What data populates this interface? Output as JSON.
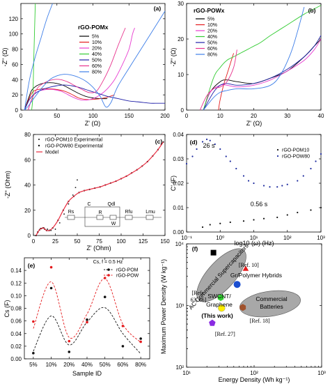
{
  "colors": {
    "p5": "#000000",
    "p10": "#e41a1c",
    "p20": "#e83cd0",
    "p40": "#33cc33",
    "p50": "#1f1fa8",
    "p60": "#e8338d",
    "p80": "#3d7ee8",
    "pom": "#111111",
    "pow": "#e41a1c",
    "model": "#e8283c",
    "blue": "#1c2a9e"
  },
  "chart_data": [
    {
      "panel": "(a)",
      "type": "line",
      "xlabel": "Z' (Ω)",
      "ylabel": "-Z\" (Ω)",
      "xlim": [
        0,
        200
      ],
      "ylim": [
        0,
        140
      ],
      "xticks": [
        "0",
        "50",
        "100",
        "150",
        "200"
      ],
      "yticks": [
        "0",
        "20",
        "40",
        "60",
        "80",
        "100",
        "120"
      ],
      "legend_title": "rGO-POMx",
      "series": [
        {
          "name": "5%",
          "color_key": "p5",
          "x": [
            5,
            10,
            15,
            22,
            30,
            40,
            50,
            60,
            70,
            80,
            90,
            100,
            110,
            120
          ],
          "y": [
            0,
            14,
            26,
            32,
            35,
            36,
            35,
            32,
            27,
            22,
            18,
            16,
            15,
            15
          ]
        },
        {
          "name": "10%",
          "color_key": "p10",
          "x": [
            5,
            10,
            15,
            20,
            30,
            40,
            50,
            60,
            70,
            80,
            90,
            100,
            110,
            120,
            130
          ],
          "y": [
            0,
            12,
            22,
            26,
            28,
            28,
            27,
            25,
            21,
            16,
            14,
            14,
            15,
            17,
            20
          ]
        },
        {
          "name": "20%",
          "color_key": "p20",
          "x": [
            10,
            14,
            18,
            25,
            35,
            45,
            55,
            62,
            70,
            80,
            90,
            100,
            110,
            120,
            130,
            140,
            150,
            155,
            158
          ],
          "y": [
            0,
            12,
            20,
            25,
            27,
            27,
            25,
            22,
            18,
            14,
            13,
            15,
            20,
            28,
            40,
            58,
            80,
            100,
            108
          ]
        },
        {
          "name": "40%",
          "color_key": "p40",
          "x": [
            15,
            16,
            17,
            18,
            20
          ],
          "y": [
            0,
            10,
            28,
            70,
            140
          ]
        },
        {
          "name": "50%",
          "color_key": "p50",
          "x": [
            5,
            12,
            20,
            30,
            40,
            50,
            60,
            70,
            80,
            90,
            100,
            110,
            120,
            130,
            140,
            150,
            160,
            170,
            180,
            190,
            200
          ],
          "y": [
            0,
            14,
            22,
            27,
            30,
            32,
            33,
            32,
            30,
            27,
            24,
            21,
            18,
            16,
            14,
            12,
            11,
            10,
            9,
            9,
            9
          ]
        },
        {
          "name": "60%",
          "color_key": "p60",
          "x": [
            10,
            15,
            20,
            25,
            35,
            45,
            55,
            65,
            75,
            85,
            95,
            105,
            115,
            125,
            135,
            145
          ],
          "y": [
            0,
            14,
            24,
            31,
            37,
            40,
            40,
            37,
            32,
            27,
            23,
            25,
            40,
            60,
            85,
            108
          ]
        },
        {
          "name": "80%",
          "color_key": "p80",
          "x": [
            5,
            10,
            20,
            30,
            40,
            50,
            60,
            70,
            80,
            90,
            100,
            110,
            118,
            125,
            130,
            135,
            140,
            150,
            160,
            180,
            200
          ],
          "y": [
            0,
            5,
            18,
            30,
            40,
            45,
            47,
            46,
            43,
            38,
            30,
            18,
            4,
            10,
            22,
            32,
            40,
            55,
            70,
            100,
            130
          ]
        },
        {
          "name": "",
          "color_key": "p80",
          "x": [
            5,
            12,
            20,
            28,
            36,
            44
          ],
          "y": [
            0,
            40,
            70,
            95,
            120,
            140
          ]
        }
      ]
    },
    {
      "panel": "(b)",
      "type": "line",
      "xlabel": "Z' (Ω)",
      "ylabel": "-Z\" (Ω)",
      "xlim": [
        0,
        40
      ],
      "ylim": [
        0,
        30
      ],
      "xticks": [
        "0",
        "10",
        "20",
        "30",
        "40"
      ],
      "yticks": [
        "0",
        "10",
        "20",
        "30"
      ],
      "legend_title": "rGO-POWx",
      "series": [
        {
          "name": "5%",
          "color_key": "p5",
          "x": [
            5,
            7,
            10,
            12,
            15,
            20,
            25,
            30,
            35,
            38,
            40
          ],
          "y": [
            0,
            5,
            8,
            8.5,
            8,
            7.5,
            9,
            11,
            15,
            18,
            20
          ]
        },
        {
          "name": "10%",
          "color_key": "p10",
          "x": [
            9.5,
            10,
            11,
            12,
            13,
            14
          ],
          "y": [
            0,
            3,
            7,
            10,
            13,
            16
          ]
        },
        {
          "name": "20%",
          "color_key": "p20",
          "x": [
            5,
            7,
            10,
            12,
            15,
            20,
            25,
            30,
            35,
            38,
            40
          ],
          "y": [
            0,
            5,
            7,
            7,
            6.5,
            7,
            8.5,
            11,
            14,
            17,
            20
          ]
        },
        {
          "name": "40%",
          "color_key": "p40",
          "x": [
            5,
            8,
            10,
            12,
            14,
            16,
            18,
            20,
            22,
            25,
            30,
            35,
            38,
            40
          ],
          "y": [
            0,
            9,
            12,
            14,
            15,
            16,
            17,
            18,
            19,
            21,
            24,
            27,
            28.5,
            29.5
          ]
        },
        {
          "name": "50%",
          "color_key": "p50",
          "x": [
            5,
            8,
            10,
            12,
            15,
            20,
            25,
            30,
            35,
            38,
            40
          ],
          "y": [
            0,
            5,
            7,
            7.5,
            7,
            7.5,
            9,
            11.5,
            15,
            18,
            21
          ]
        },
        {
          "name": "60%",
          "color_key": "p60",
          "x": [
            4,
            6,
            8,
            10,
            12,
            14,
            15
          ],
          "y": [
            0,
            4,
            6,
            6.5,
            8,
            12,
            17
          ]
        },
        {
          "name": "80%",
          "color_key": "p80",
          "x": [
            5,
            8,
            10,
            12,
            15,
            20,
            25,
            28,
            31,
            33,
            35
          ],
          "y": [
            0,
            3.5,
            5,
            5.5,
            6,
            6,
            7,
            10,
            16,
            22,
            29
          ]
        }
      ]
    },
    {
      "panel": "(c)",
      "type": "scatter",
      "xlabel": "Z' (Ohm)",
      "ylabel": "-Z\" (Ohm)",
      "xlim": [
        0,
        150
      ],
      "ylim": [
        0,
        80
      ],
      "xticks": [
        "0",
        "25",
        "50",
        "75",
        "100",
        "125",
        "150"
      ],
      "yticks": [
        "0",
        "20",
        "40",
        "60",
        "80"
      ],
      "series": [
        {
          "name": "rGO-POM10 Experimental",
          "color_key": "pom",
          "x": [
            3,
            5,
            8,
            12,
            16,
            20,
            25,
            30,
            35,
            40,
            45,
            48,
            50
          ],
          "y": [
            0,
            3,
            5.5,
            6,
            5,
            4,
            5,
            10,
            17,
            25,
            32,
            38,
            44
          ]
        },
        {
          "name": "rGO-POW80 Experimental",
          "color_key": "pow",
          "x": [
            3,
            5,
            7,
            9,
            11,
            13,
            15,
            18,
            22,
            28,
            34,
            40,
            46,
            52,
            58,
            64,
            70,
            76,
            82,
            88,
            94,
            100,
            106,
            112,
            118,
            124,
            130,
            136,
            142,
            148
          ],
          "y": [
            0,
            2.5,
            4.5,
            5.5,
            6,
            5,
            4,
            4,
            6,
            12,
            20,
            27,
            31,
            34,
            35.5,
            36.5,
            37.5,
            38.5,
            40,
            41.5,
            43,
            45,
            47,
            49.5,
            52,
            55,
            58.5,
            63,
            68,
            74
          ]
        },
        {
          "name": "Model",
          "color_key": "model",
          "x": [
            3,
            5,
            7,
            9,
            11,
            13,
            15,
            18,
            22,
            28,
            34,
            40,
            46,
            52,
            58,
            64,
            70,
            76,
            82,
            88,
            94,
            100,
            106,
            112,
            118,
            124,
            130,
            136,
            142,
            148
          ],
          "y": [
            0,
            2.5,
            4.5,
            5.5,
            6,
            5,
            4,
            4,
            6,
            12,
            20,
            27,
            31,
            34,
            35.5,
            36.5,
            37.5,
            38.5,
            40,
            41.5,
            43,
            45,
            47,
            49.5,
            52,
            55,
            58.5,
            63,
            68,
            74
          ]
        }
      ],
      "circuit_labels": [
        "Rs",
        "C",
        "R",
        "Qdl",
        "W",
        "Rfu",
        "Lmu"
      ]
    },
    {
      "panel": "(d)",
      "type": "scatter",
      "xscale": "log",
      "xlabel": "log10 (ω) (Hz)",
      "ylabel": "C' (F)",
      "xlim": [
        0.1,
        1000
      ],
      "ylim": [
        0,
        0.04
      ],
      "xticks": [
        "10⁻¹",
        "10⁰",
        "10¹",
        "10²",
        "10³"
      ],
      "yticks": [
        "0.00",
        "0.01",
        "0.02",
        "0.03",
        "0.04"
      ],
      "annotations": [
        "26 s",
        "0.56 s"
      ],
      "series": [
        {
          "name": "rGO-POM10",
          "color_key": "pom",
          "x": [
            0.3,
            0.5,
            1,
            2,
            5,
            10,
            20,
            50,
            100,
            200,
            500,
            1000
          ],
          "y": [
            0.002,
            0.003,
            0.0035,
            0.004,
            0.0045,
            0.005,
            0.0055,
            0.006,
            0.007,
            0.008,
            0.009,
            0.01
          ]
        },
        {
          "name": "rGO-POW80",
          "color_key": "blue",
          "x": [
            0.1,
            0.15,
            0.2,
            0.3,
            0.4,
            0.5,
            0.7,
            1,
            1.5,
            2,
            3,
            5,
            7,
            10,
            20,
            30,
            50,
            70,
            100,
            200,
            300,
            500,
            700,
            1000
          ],
          "y": [
            0.028,
            0.031,
            0.034,
            0.037,
            0.038,
            0.0375,
            0.036,
            0.034,
            0.031,
            0.029,
            0.026,
            0.023,
            0.021,
            0.02,
            0.019,
            0.0185,
            0.0185,
            0.019,
            0.0195,
            0.021,
            0.023,
            0.026,
            0.029,
            0.032
          ]
        }
      ]
    },
    {
      "panel": "(e)",
      "type": "scatter",
      "xlabel": "Sample ID",
      "ylabel": "Cs (F)",
      "note": "Cs, f = 0.5 Hz",
      "categories": [
        "5%",
        "10%",
        "20%",
        "40%",
        "50%",
        "60%",
        "80%"
      ],
      "ylim": [
        0,
        0.16
      ],
      "yticks": [
        "0.00",
        "0.02",
        "0.04",
        "0.06",
        "0.08",
        "0.10",
        "0.12",
        "0.14"
      ],
      "series": [
        {
          "name": "rGO-POM",
          "color_key": "pom",
          "values": [
            0.009,
            0.112,
            0.011,
            0.062,
            0.098,
            0.02,
            0.032
          ]
        },
        {
          "name": "rGO-POW",
          "color_key": "pow",
          "values": [
            0.059,
            0.145,
            0.028,
            0.058,
            0.128,
            0.052,
            0.027
          ]
        }
      ],
      "fits": [
        {
          "color_key": "pom",
          "values": [
            0.012,
            0.068,
            0.022,
            0.058,
            0.081,
            0.04,
            0.008
          ]
        },
        {
          "color_key": "pow",
          "values": [
            0.048,
            0.122,
            0.034,
            0.071,
            0.127,
            0.055,
            0.026
          ]
        }
      ]
    },
    {
      "panel": "(f)",
      "type": "scatter",
      "xscale": "log",
      "yscale": "log",
      "xlabel": "Energy Density (Wh kg⁻¹)",
      "ylabel": "Maximum Power Density (W kg⁻¹)",
      "xlim": [
        10,
        1000
      ],
      "ylim": [
        100,
        10000
      ],
      "xticks": [
        "10¹",
        "10²",
        "10³"
      ],
      "yticks": [
        "10²",
        "10³",
        "10⁴"
      ],
      "regions": [
        "AC Commercial Supercapacitors",
        "Commercial Batteries"
      ],
      "points": [
        {
          "label": "AC",
          "marker": "square",
          "color": "#000000",
          "x": 25,
          "y": 7200
        },
        {
          "label": "[Ref. 10] Gr/Polymer Hybrids",
          "marker": "triangle",
          "color": "#e41a1c",
          "x": 75,
          "y": 3900
        },
        {
          "label": "[Refs. 63, 66]",
          "marker": "circle",
          "color": "#1c4fd0",
          "x": 56,
          "y": 2200
        },
        {
          "label": "SWCNT/ Graphene",
          "marker": "hexagon",
          "color": "#33cc33",
          "x": 32,
          "y": 1350
        },
        {
          "label": "(This work)",
          "marker": "circle",
          "color": "#ffee00",
          "x": 33,
          "y": 910
        },
        {
          "label": "[Ref. 18]",
          "marker": "hexagon",
          "color": "#a0522d",
          "x": 68,
          "y": 930
        },
        {
          "label": "[Ref. 27]",
          "marker": "pentagon",
          "color": "#8a2be2",
          "x": 24,
          "y": 520
        }
      ]
    }
  ]
}
